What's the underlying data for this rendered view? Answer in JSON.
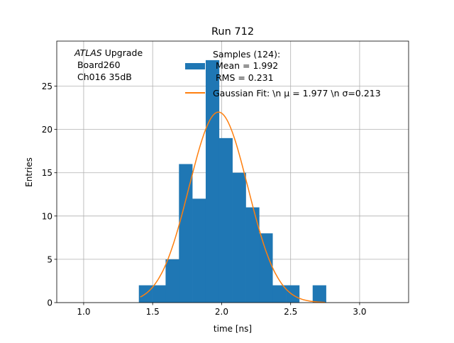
{
  "chart_data": {
    "type": "bar",
    "title": "Run 712",
    "xlabel": "time [ns]",
    "ylabel": "Entries",
    "xlim": [
      0.805,
      3.355
    ],
    "ylim": [
      0,
      30.2
    ],
    "grid": true,
    "xticks": [
      1.0,
      1.5,
      2.0,
      2.5,
      3.0
    ],
    "xtick_labels": [
      "1.0",
      "1.5",
      "2.0",
      "2.5",
      "3.0"
    ],
    "yticks": [
      0,
      5,
      10,
      15,
      20,
      25
    ],
    "ytick_labels": [
      "0",
      "5",
      "10",
      "15",
      "20",
      "25"
    ],
    "histogram": {
      "bin_start": 1.4,
      "bin_width": 0.0969,
      "counts": [
        2,
        2,
        5,
        16,
        12,
        28,
        19,
        15,
        11,
        8,
        2,
        2,
        0,
        2
      ],
      "color": "#1f77b4"
    },
    "fit": {
      "type": "gaussian",
      "mu": 1.977,
      "sigma": 0.213,
      "amplitude": 22.0,
      "x_range": [
        1.41,
        2.75
      ],
      "color": "#ff7f0e"
    },
    "legend": {
      "placement": "top-right",
      "entries": [
        {
          "lines": [
            "Samples (124):",
            " Mean = 1.992",
            " RMS = 0.231"
          ]
        },
        {
          "lines": [
            "Gaussian Fit: \\n μ = 1.977 \\n σ=0.213"
          ]
        }
      ]
    },
    "annotation": {
      "italic": "ATLAS",
      "line1_rest": " Upgrade",
      "line2": " Board260",
      "line3": " Ch016 35dB"
    }
  }
}
